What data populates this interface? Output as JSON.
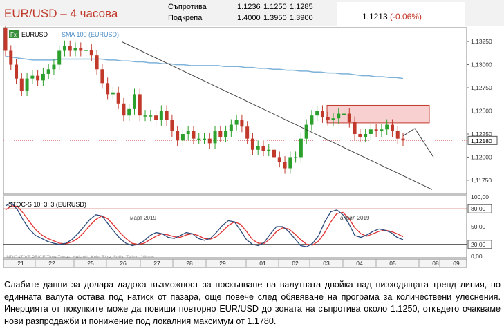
{
  "header": {
    "title": "EUR/USD – 4 часова",
    "resistance_label": "Съпротива",
    "resistance_values": [
      "1.1236",
      "1.1250",
      "1.1285"
    ],
    "support_label": "Подкрепа",
    "support_values": [
      "1.4000",
      "1.3950",
      "1.3900"
    ],
    "last_price": "1.1213",
    "last_change": "(-0.06%)"
  },
  "colors": {
    "up": "#2ca02c",
    "down": "#c0392b",
    "sma": "#7fb2d9",
    "stoch_k": "#2c4a7a",
    "stoch_d": "#e03030",
    "zone": "#f8d0d0"
  },
  "chart_data": [
    {
      "type": "line",
      "title": "",
      "legend": [
        "EURUSD",
        "SMA 100 (EURUSD)"
      ],
      "ylim": [
        1.116,
        1.134
      ],
      "y_ticks": [
        "1,13250",
        "1,13000",
        "1,12750",
        "1,12500",
        "1,12250",
        "1,12000",
        "1,11750"
      ],
      "last_price_label": "1,12180",
      "x_tick_labels": [
        "21",
        "22",
        "25",
        "26",
        "27",
        "28",
        "29",
        "01",
        "02",
        "03",
        "04",
        "05",
        "08",
        "09"
      ],
      "x_group_labels": [
        "март 2019",
        "април 2019"
      ],
      "series": [
        {
          "name": "EURUSD",
          "close": [
            1.1315,
            1.13,
            1.1285,
            1.1272,
            1.1285,
            1.1288,
            1.1283,
            1.129,
            1.1295,
            1.13,
            1.1315,
            1.132,
            1.1315,
            1.1318,
            1.1315,
            1.1316,
            1.131,
            1.1295,
            1.128,
            1.1268,
            1.127,
            1.1258,
            1.1245,
            1.1252,
            1.1268,
            1.1245,
            1.1245,
            1.1245,
            1.124,
            1.125,
            1.124,
            1.1228,
            1.1218,
            1.1225,
            1.1228,
            1.122,
            1.122,
            1.122,
            1.1215,
            1.1228,
            1.1222,
            1.1228,
            1.1235,
            1.124,
            1.1233,
            1.122,
            1.1208,
            1.1212,
            1.1207,
            1.1208,
            1.12,
            1.1195,
            1.1188,
            1.12,
            1.12,
            1.122,
            1.1235,
            1.1245,
            1.125,
            1.1243,
            1.124,
            1.1242,
            1.1247,
            1.1247,
            1.1238,
            1.1225,
            1.1222,
            1.1225,
            1.123,
            1.1228,
            1.123,
            1.1235,
            1.1228,
            1.122,
            1.1218
          ],
          "open": [
            1.134,
            1.1315,
            1.13,
            1.1285,
            1.1272,
            1.1285,
            1.1288,
            1.1283,
            1.129,
            1.1295,
            1.13,
            1.1315,
            1.132,
            1.1315,
            1.1318,
            1.1315,
            1.1316,
            1.131,
            1.1295,
            1.128,
            1.1268,
            1.127,
            1.1258,
            1.1245,
            1.1252,
            1.1268,
            1.1245,
            1.1245,
            1.1245,
            1.124,
            1.125,
            1.124,
            1.1228,
            1.1218,
            1.1225,
            1.1228,
            1.122,
            1.122,
            1.122,
            1.1215,
            1.1228,
            1.1222,
            1.1228,
            1.1235,
            1.124,
            1.1233,
            1.122,
            1.1208,
            1.1212,
            1.1207,
            1.1208,
            1.12,
            1.1195,
            1.1188,
            1.12,
            1.12,
            1.122,
            1.1235,
            1.1245,
            1.125,
            1.1243,
            1.124,
            1.1242,
            1.1247,
            1.1247,
            1.1238,
            1.1225,
            1.1222,
            1.1225,
            1.123,
            1.1228,
            1.123,
            1.1235,
            1.1228,
            1.122
          ]
        },
        {
          "name": "SMA 100 (EURUSD)",
          "values": [
            1.1309,
            1.1308,
            1.1307,
            1.1306,
            1.1305,
            1.1305,
            1.1305,
            1.1305,
            1.1306,
            1.1306,
            1.1306,
            1.1306,
            1.1306,
            1.1306,
            1.1306,
            1.1305,
            1.1305,
            1.1304,
            1.1304,
            1.1303,
            1.1303,
            1.1302,
            1.1302,
            1.1301,
            1.1301,
            1.13,
            1.13,
            1.1299,
            1.1299,
            1.1299,
            1.1299,
            1.1299,
            1.1298,
            1.1298,
            1.1298,
            1.1297,
            1.1297,
            1.1296,
            1.1296,
            1.1295,
            1.1295,
            1.1294,
            1.1294,
            1.1293,
            1.1293,
            1.1292,
            1.1292,
            1.1291,
            1.1291,
            1.129,
            1.129,
            1.1289,
            1.1288,
            1.1288,
            1.1287,
            1.1287,
            1.1286,
            1.1286,
            1.1285
          ]
        }
      ],
      "annotations": {
        "resistance_zone": [
          1.1237,
          1.1256
        ],
        "trendline": [
          [
            0,
            1.13245
          ],
          [
            36,
            1.1165
          ]
        ],
        "projection": [
          [
            0,
            1.1223
          ],
          [
            4,
            1.1231
          ],
          [
            10,
            1.12
          ]
        ]
      }
    },
    {
      "type": "line",
      "legend": [
        "STOC-S 10; 3; 3 (EURUSD)"
      ],
      "ylim": [
        0,
        100
      ],
      "y_ticks": [
        "100,00",
        "80,00",
        "50,00",
        "20,00",
        "0,00"
      ],
      "levels": [
        80,
        20
      ],
      "series": [
        {
          "name": "STOC-S 10; 3; 3 (EURUSD)",
          "values": [
            85,
            90,
            78,
            60,
            45,
            35,
            30,
            25,
            22,
            20,
            22,
            28,
            38,
            50,
            62,
            70,
            68,
            55,
            42,
            30,
            22,
            18,
            20,
            26,
            35,
            40,
            38,
            32,
            30,
            35,
            40,
            38,
            30,
            27,
            30,
            40,
            52,
            60,
            58,
            44,
            28,
            20,
            18,
            24,
            38,
            50,
            50,
            42,
            30,
            18,
            16,
            22,
            35,
            58,
            75,
            78,
            70,
            55,
            35,
            32,
            36,
            42,
            46,
            44,
            40,
            32,
            28
          ]
        },
        {
          "name": "%D",
          "values": [
            78,
            85,
            84,
            72,
            58,
            45,
            36,
            30,
            26,
            22,
            21,
            24,
            30,
            40,
            52,
            62,
            68,
            63,
            52,
            40,
            30,
            22,
            20,
            22,
            28,
            34,
            38,
            36,
            33,
            32,
            36,
            38,
            35,
            30,
            29,
            33,
            42,
            52,
            58,
            54,
            42,
            28,
            22,
            22,
            30,
            42,
            48,
            46,
            38,
            28,
            20,
            19,
            26,
            40,
            58,
            72,
            74,
            64,
            48,
            38,
            34,
            38,
            42,
            44,
            42,
            38,
            33
          ]
        }
      ]
    }
  ],
  "footer": {
    "watermark": "INDICATIVE PRICE   Time Zones: Helsinki, Kyiv, Riga, Sofia, Tallinn, Vilnius"
  },
  "caption": "Слабите данни за долара дадоха възможност за поскъпване на валутната двойка над низходящата тренд линия, но единната валута остава под натиск от пазара, още повече след обявяване на програма за количествени улеснения. Инерцията от покупките може да повиши повторно EUR/USD до зоната на съпротива около 1.1250, откъдето очакваме нови разпродажби и понижение под локалния максимум от 1.1780."
}
